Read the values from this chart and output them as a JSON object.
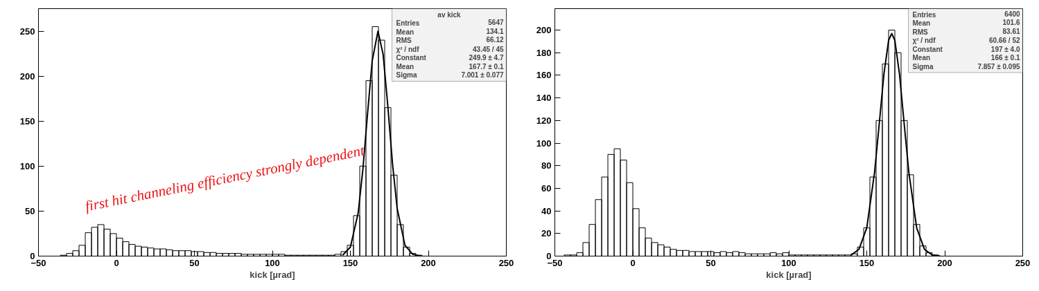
{
  "chart_data": [
    {
      "type": "histogram",
      "title": "av kick",
      "xlabel": "kick [µrad]",
      "xlim": [
        -50,
        250
      ],
      "ylim": [
        0,
        275
      ],
      "xticks": [
        -50,
        0,
        50,
        100,
        150,
        200,
        250
      ],
      "yticks": [
        0,
        50,
        100,
        150,
        200,
        250
      ],
      "grid": false,
      "series": [
        {
          "color": "#000000",
          "bins": [
            -40,
            -36,
            -32,
            -28,
            -24,
            -20,
            -16,
            -12,
            -8,
            -4,
            0,
            4,
            8,
            12,
            16,
            20,
            24,
            28,
            32,
            36,
            40,
            44,
            48,
            52,
            56,
            60,
            64,
            68,
            72,
            76,
            80,
            84,
            88,
            92,
            96,
            100,
            104,
            108,
            112,
            116,
            120,
            124,
            128,
            132,
            136,
            140,
            144,
            148,
            152,
            156,
            160,
            164,
            168,
            172,
            176,
            180,
            184,
            188,
            192,
            196,
            200
          ],
          "values": [
            0,
            1,
            3,
            6,
            12,
            26,
            32,
            35,
            30,
            25,
            20,
            16,
            13,
            11,
            10,
            9,
            8,
            8,
            7,
            6,
            6,
            6,
            5,
            5,
            4,
            4,
            3,
            3,
            3,
            3,
            2,
            2,
            2,
            2,
            2,
            2,
            2,
            1,
            1,
            1,
            1,
            1,
            1,
            1,
            1,
            2,
            5,
            12,
            45,
            100,
            195,
            255,
            240,
            165,
            90,
            35,
            10,
            3,
            1,
            0
          ]
        },
        {
          "type": "line",
          "color": "#000000",
          "x": [
            145,
            150,
            155,
            158,
            161,
            164,
            167.7,
            171,
            174,
            177,
            180,
            185,
            190,
            195
          ],
          "values": [
            1,
            10,
            48,
            96,
            158,
            217,
            250,
            224,
            167,
            103,
            53,
            12,
            2,
            0
          ]
        }
      ],
      "annotations": [
        "Entries",
        "5647",
        "Mean",
        "134.1",
        "RMS",
        "66.12",
        "χ² / ndf",
        "43.45 / 45",
        "Constant",
        "249.9 ± 4.7",
        "Mean",
        "167.7 ± 0.1",
        "Sigma",
        "7.001 ± 0.077",
        "first hit channeling efficiency strongly dependent"
      ]
    },
    {
      "type": "histogram",
      "xlabel": "kick [µrad]",
      "xlim": [
        -50,
        250
      ],
      "ylim": [
        0,
        219
      ],
      "xticks": [
        -50,
        0,
        50,
        100,
        150,
        200,
        250
      ],
      "yticks": [
        0,
        20,
        40,
        60,
        80,
        100,
        120,
        140,
        160,
        180,
        200
      ],
      "grid": false,
      "series": [
        {
          "color": "#000000",
          "bins": [
            -44,
            -40,
            -36,
            -32,
            -28,
            -24,
            -20,
            -16,
            -12,
            -8,
            -4,
            0,
            4,
            8,
            12,
            16,
            20,
            24,
            28,
            32,
            36,
            40,
            44,
            48,
            52,
            56,
            60,
            64,
            68,
            72,
            76,
            80,
            84,
            88,
            92,
            96,
            100,
            104,
            108,
            112,
            116,
            120,
            124,
            128,
            132,
            136,
            140,
            144,
            148,
            152,
            156,
            160,
            164,
            168,
            172,
            176,
            180,
            184,
            188,
            192,
            196,
            200
          ],
          "values": [
            1,
            1,
            3,
            12,
            28,
            50,
            70,
            90,
            95,
            85,
            65,
            42,
            25,
            16,
            12,
            10,
            8,
            6,
            5,
            5,
            4,
            4,
            4,
            4,
            3,
            4,
            3,
            4,
            3,
            2,
            2,
            2,
            2,
            3,
            2,
            3,
            1,
            1,
            1,
            1,
            1,
            1,
            1,
            1,
            1,
            1,
            2,
            8,
            25,
            70,
            120,
            170,
            200,
            180,
            120,
            72,
            28,
            9,
            3,
            1,
            0
          ]
        },
        {
          "type": "line",
          "color": "#000000",
          "x": [
            140,
            145,
            150,
            155,
            158,
            161,
            164,
            166,
            168,
            171,
            174,
            177,
            182,
            187,
            192,
            197
          ],
          "values": [
            1,
            6,
            25,
            74,
            117,
            161,
            191,
            197,
            191,
            161,
            117,
            74,
            25,
            6,
            1,
            0
          ]
        }
      ],
      "annotations": [
        "Entries",
        "6400",
        "Mean",
        "101.6",
        "RMS",
        "83.61",
        "χ² / ndf",
        "60.66 / 52",
        "Constant",
        "197 ± 4.0",
        "Mean",
        "166 ± 0.1",
        "Sigma",
        "7.857 ± 0.095"
      ]
    }
  ]
}
